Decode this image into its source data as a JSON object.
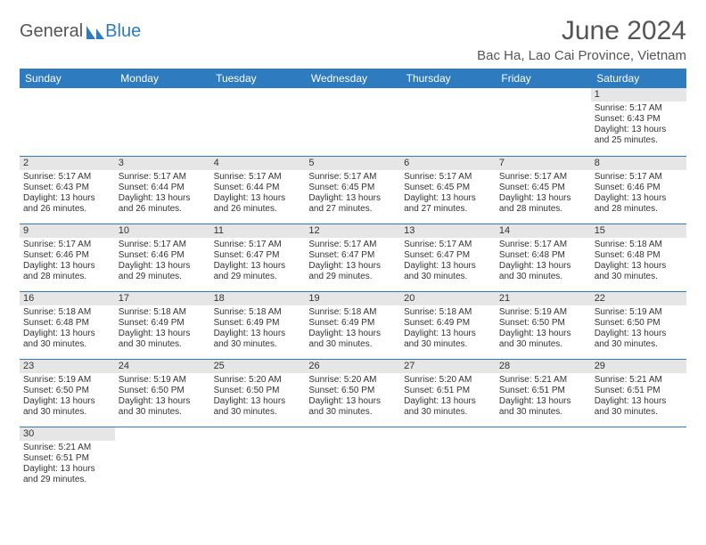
{
  "logo": {
    "part1": "General",
    "part2": "Blue"
  },
  "title": "June 2024",
  "location": "Bac Ha, Lao Cai Province, Vietnam",
  "colors": {
    "header_bg": "#2f7bbf",
    "header_fg": "#ffffff",
    "daynum_bg": "#e6e6e6",
    "border": "#2f7bbf",
    "logo_gray": "#555555",
    "logo_blue": "#2f7bbf"
  },
  "weekdays": [
    "Sunday",
    "Monday",
    "Tuesday",
    "Wednesday",
    "Thursday",
    "Friday",
    "Saturday"
  ],
  "weeks": [
    [
      null,
      null,
      null,
      null,
      null,
      null,
      {
        "n": "1",
        "sr": "5:17 AM",
        "ss": "6:43 PM",
        "dl": "13 hours and 25 minutes."
      }
    ],
    [
      {
        "n": "2",
        "sr": "5:17 AM",
        "ss": "6:43 PM",
        "dl": "13 hours and 26 minutes."
      },
      {
        "n": "3",
        "sr": "5:17 AM",
        "ss": "6:44 PM",
        "dl": "13 hours and 26 minutes."
      },
      {
        "n": "4",
        "sr": "5:17 AM",
        "ss": "6:44 PM",
        "dl": "13 hours and 26 minutes."
      },
      {
        "n": "5",
        "sr": "5:17 AM",
        "ss": "6:45 PM",
        "dl": "13 hours and 27 minutes."
      },
      {
        "n": "6",
        "sr": "5:17 AM",
        "ss": "6:45 PM",
        "dl": "13 hours and 27 minutes."
      },
      {
        "n": "7",
        "sr": "5:17 AM",
        "ss": "6:45 PM",
        "dl": "13 hours and 28 minutes."
      },
      {
        "n": "8",
        "sr": "5:17 AM",
        "ss": "6:46 PM",
        "dl": "13 hours and 28 minutes."
      }
    ],
    [
      {
        "n": "9",
        "sr": "5:17 AM",
        "ss": "6:46 PM",
        "dl": "13 hours and 28 minutes."
      },
      {
        "n": "10",
        "sr": "5:17 AM",
        "ss": "6:46 PM",
        "dl": "13 hours and 29 minutes."
      },
      {
        "n": "11",
        "sr": "5:17 AM",
        "ss": "6:47 PM",
        "dl": "13 hours and 29 minutes."
      },
      {
        "n": "12",
        "sr": "5:17 AM",
        "ss": "6:47 PM",
        "dl": "13 hours and 29 minutes."
      },
      {
        "n": "13",
        "sr": "5:17 AM",
        "ss": "6:47 PM",
        "dl": "13 hours and 30 minutes."
      },
      {
        "n": "14",
        "sr": "5:17 AM",
        "ss": "6:48 PM",
        "dl": "13 hours and 30 minutes."
      },
      {
        "n": "15",
        "sr": "5:18 AM",
        "ss": "6:48 PM",
        "dl": "13 hours and 30 minutes."
      }
    ],
    [
      {
        "n": "16",
        "sr": "5:18 AM",
        "ss": "6:48 PM",
        "dl": "13 hours and 30 minutes."
      },
      {
        "n": "17",
        "sr": "5:18 AM",
        "ss": "6:49 PM",
        "dl": "13 hours and 30 minutes."
      },
      {
        "n": "18",
        "sr": "5:18 AM",
        "ss": "6:49 PM",
        "dl": "13 hours and 30 minutes."
      },
      {
        "n": "19",
        "sr": "5:18 AM",
        "ss": "6:49 PM",
        "dl": "13 hours and 30 minutes."
      },
      {
        "n": "20",
        "sr": "5:18 AM",
        "ss": "6:49 PM",
        "dl": "13 hours and 30 minutes."
      },
      {
        "n": "21",
        "sr": "5:19 AM",
        "ss": "6:50 PM",
        "dl": "13 hours and 30 minutes."
      },
      {
        "n": "22",
        "sr": "5:19 AM",
        "ss": "6:50 PM",
        "dl": "13 hours and 30 minutes."
      }
    ],
    [
      {
        "n": "23",
        "sr": "5:19 AM",
        "ss": "6:50 PM",
        "dl": "13 hours and 30 minutes."
      },
      {
        "n": "24",
        "sr": "5:19 AM",
        "ss": "6:50 PM",
        "dl": "13 hours and 30 minutes."
      },
      {
        "n": "25",
        "sr": "5:20 AM",
        "ss": "6:50 PM",
        "dl": "13 hours and 30 minutes."
      },
      {
        "n": "26",
        "sr": "5:20 AM",
        "ss": "6:50 PM",
        "dl": "13 hours and 30 minutes."
      },
      {
        "n": "27",
        "sr": "5:20 AM",
        "ss": "6:51 PM",
        "dl": "13 hours and 30 minutes."
      },
      {
        "n": "28",
        "sr": "5:21 AM",
        "ss": "6:51 PM",
        "dl": "13 hours and 30 minutes."
      },
      {
        "n": "29",
        "sr": "5:21 AM",
        "ss": "6:51 PM",
        "dl": "13 hours and 30 minutes."
      }
    ],
    [
      {
        "n": "30",
        "sr": "5:21 AM",
        "ss": "6:51 PM",
        "dl": "13 hours and 29 minutes."
      },
      null,
      null,
      null,
      null,
      null,
      null
    ]
  ],
  "labels": {
    "sunrise": "Sunrise: ",
    "sunset": "Sunset: ",
    "daylight": "Daylight: "
  }
}
